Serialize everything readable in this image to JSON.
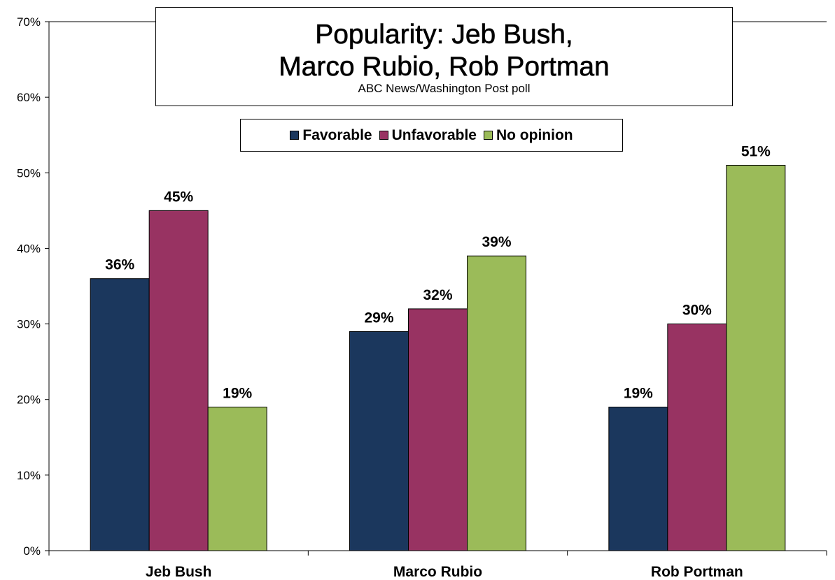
{
  "chart_data": {
    "type": "bar",
    "title": "Popularity: Jeb Bush, Marco Rubio, Rob Portman",
    "title_lines": [
      "Popularity: Jeb Bush,",
      "Marco Rubio, Rob Portman"
    ],
    "subtitle": "ABC News/Washington Post poll",
    "categories": [
      "Jeb Bush",
      "Marco Rubio",
      "Rob Portman"
    ],
    "series": [
      {
        "name": "Favorable",
        "color": "#1b375d",
        "values": [
          36,
          29,
          19
        ],
        "labels": [
          "36%",
          "29%",
          "19%"
        ]
      },
      {
        "name": "Unfavorable",
        "color": "#983362",
        "values": [
          45,
          32,
          30
        ],
        "labels": [
          "45%",
          "32%",
          "30%"
        ]
      },
      {
        "name": "No opinion",
        "color": "#9bbb59",
        "values": [
          19,
          39,
          51
        ],
        "labels": [
          "19%",
          "39%",
          "51%"
        ]
      }
    ],
    "ylim": [
      0,
      70
    ],
    "yticks": [
      0,
      10,
      20,
      30,
      40,
      50,
      60,
      70
    ],
    "ytick_labels": [
      "0%",
      "10%",
      "20%",
      "30%",
      "40%",
      "50%",
      "60%",
      "70%"
    ],
    "xlabel": "",
    "ylabel": "",
    "grid": false,
    "legend_position": "top-center"
  }
}
